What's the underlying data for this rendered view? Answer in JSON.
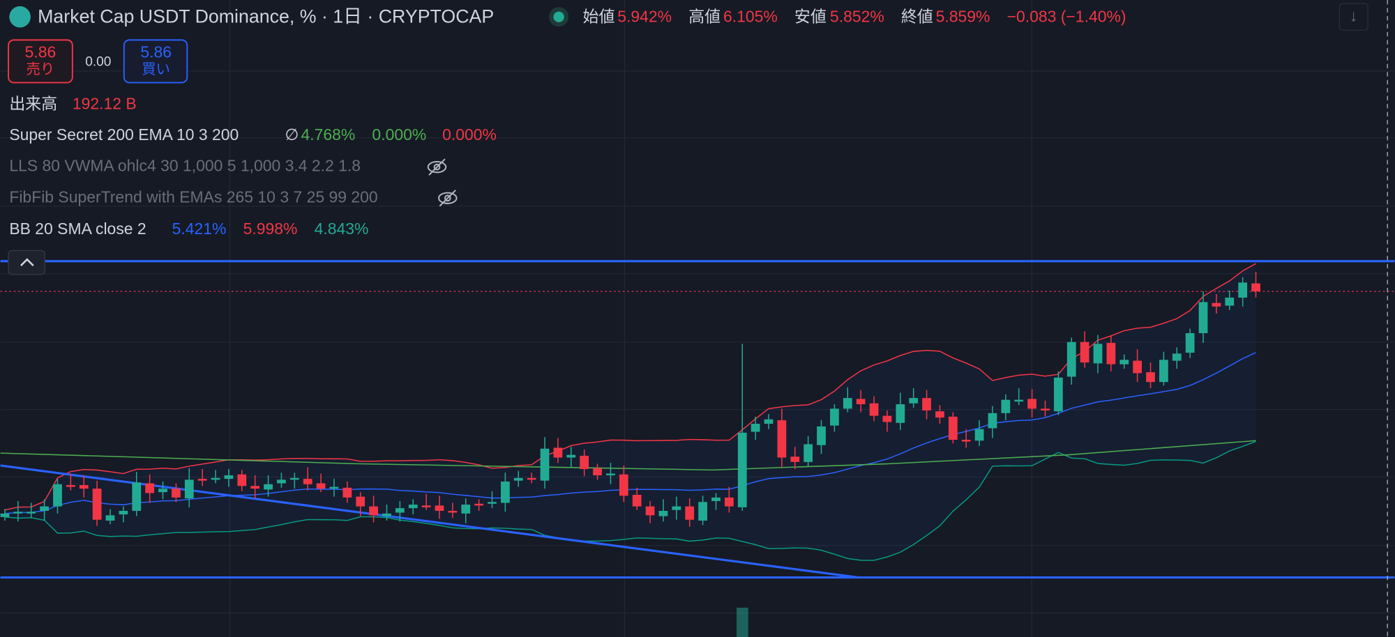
{
  "header": {
    "title": "Market Cap USDT Dominance, % · 1日 · CRYPTOCAP",
    "ohlc": [
      {
        "label": "始値",
        "value": "5.942%"
      },
      {
        "label": "高値",
        "value": "6.105%"
      },
      {
        "label": "安値",
        "value": "5.852%"
      },
      {
        "label": "終値",
        "value": "5.859%"
      }
    ],
    "change": "−0.083 (−1.40%)"
  },
  "trade": {
    "sell": {
      "price": "5.86",
      "label": "売り"
    },
    "spread": "0.00",
    "buy": {
      "price": "5.86",
      "label": "買い"
    }
  },
  "indicators": [
    {
      "name": "出来高",
      "values": [
        "192.12 B"
      ]
    },
    {
      "name": "Super Secret 200 EMA 10 3 200",
      "values": [
        "4.768%",
        "0.000%",
        "0.000%"
      ]
    },
    {
      "name": "LLS 80 VWMA ohlc4 30 1,000 5 1,000 3.4 2.2 1.8",
      "values": []
    },
    {
      "name": "FibFib SuperTrend with EMAs 265 10 3 7 25 99 200",
      "values": []
    },
    {
      "name": "BB 20 SMA close 2",
      "values": [
        "5.421%",
        "5.998%",
        "4.843%"
      ]
    }
  ]
}
